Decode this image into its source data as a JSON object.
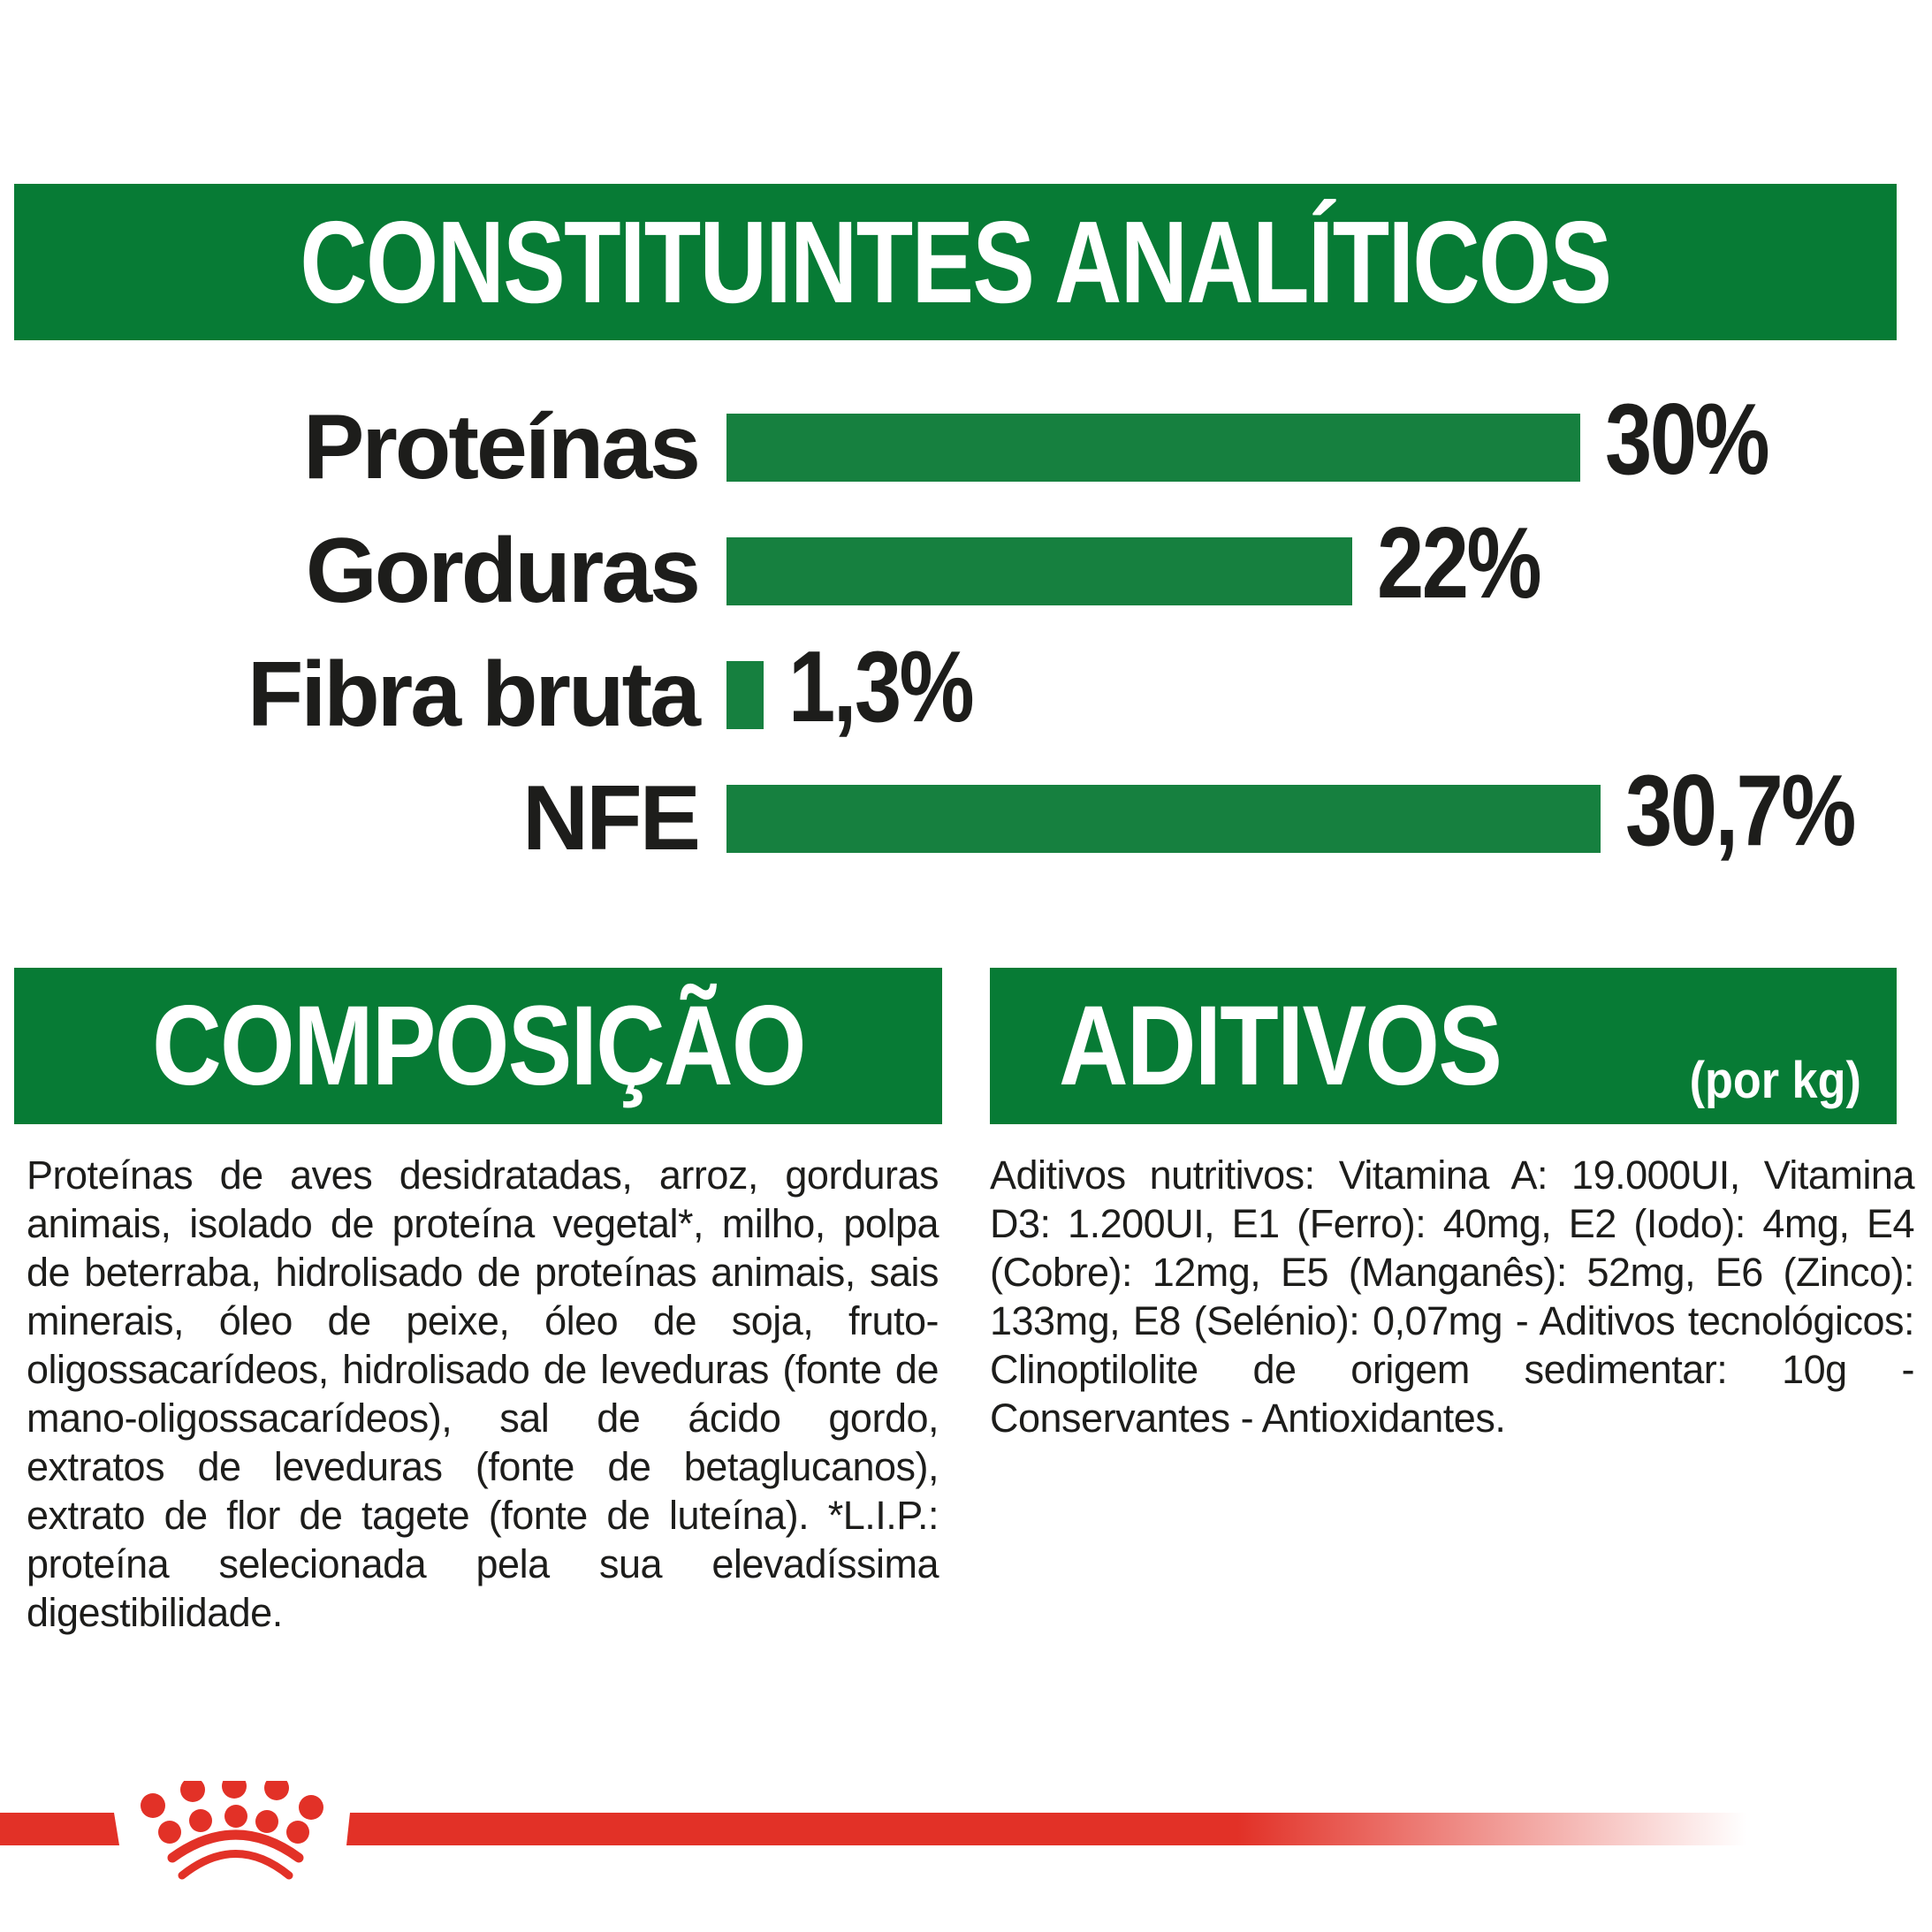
{
  "colors": {
    "banner_green": "#077B35",
    "bar_green": "#16803F",
    "text_black": "#1D1D1B",
    "brand_red": "#E23127"
  },
  "analytics_banner": {
    "title": "CONSTITUINTES ANALÍTICOS"
  },
  "chart_data": {
    "type": "bar",
    "orientation": "horizontal",
    "title": "CONSTITUINTES ANALÍTICOS",
    "categories": [
      "Proteínas",
      "Gorduras",
      "Fibra bruta",
      "NFE"
    ],
    "values": [
      30,
      22,
      1.3,
      30.7
    ],
    "value_labels": [
      "30%",
      "22%",
      "1,3%",
      "30,7%"
    ],
    "unit": "%",
    "xlim": [
      0,
      30.7
    ],
    "bar_color": "#16803F",
    "grid": false,
    "legend": false,
    "value_label_position": "right-of-bar"
  },
  "composition": {
    "title": "COMPOSIÇÃO",
    "body": "Proteínas de aves desidratadas, arroz, gorduras animais, isolado de proteína vegetal*, milho, polpa de beterraba, hidrolisado de proteínas animais, sais minerais, óleo de peixe, óleo de soja, fruto-oligossacarídeos, hidrolisado de leveduras (fonte de mano-oligossacarídeos), sal de ácido gordo, extratos de leveduras (fonte de betaglucanos), extrato de flor de tagete (fonte de luteína). *L.I.P.: proteína selecionada pela sua elevadíssima digestibilidade."
  },
  "additives": {
    "title": "ADITIVOS",
    "per_unit_label": "(por kg)",
    "body": "Aditivos nutritivos: Vitamina A: 19.000UI, Vitamina D3: 1.200UI, E1 (Ferro): 40mg, E2 (Iodo): 4mg, E4 (Cobre): 12mg, E5 (Manganês): 52mg, E6 (Zinco): 133mg, E8 (Selénio): 0,07mg - Aditivos tecnológicos: Clinoptilolite de origem sedimentar: 10g - Conservantes - Antioxidantes."
  },
  "footer": {
    "brand_mark": "royal-canin-crown"
  }
}
